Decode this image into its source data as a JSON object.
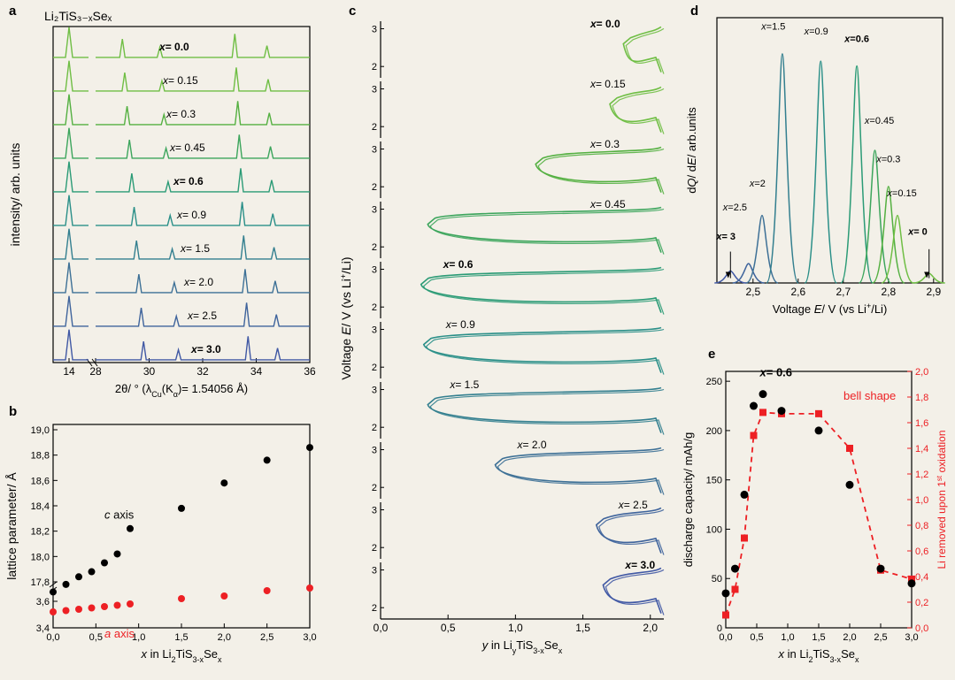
{
  "formula_title": "Li₂TiS₃₋ₓSeₓ",
  "panelA": {
    "label": "a",
    "ylabel": "intensity/ arb. units",
    "xlabel": "2θ/ ° (λ_Cu(K_α)= 1.54056 Å)",
    "xticks": [
      "14",
      "28",
      "30",
      "32",
      "34",
      "36"
    ],
    "curves": [
      {
        "x": "0.0",
        "color": "#6fbe44",
        "bold": true
      },
      {
        "x": "0.15",
        "color": "#6fbe44"
      },
      {
        "x": "0.3",
        "color": "#54b041"
      },
      {
        "x": "0.45",
        "color": "#3ca55c"
      },
      {
        "x": "0.6",
        "color": "#2b9b76",
        "bold": true
      },
      {
        "x": "0.9",
        "color": "#2a8f88"
      },
      {
        "x": "1.5",
        "color": "#337f8f"
      },
      {
        "x": "2.0",
        "color": "#3d7096"
      },
      {
        "x": "2.5",
        "color": "#3f649c"
      },
      {
        "x": "3.0",
        "color": "#4058a4",
        "bold": true
      }
    ]
  },
  "panelB": {
    "label": "b",
    "ylabel": "lattice parameter/ Å",
    "xlabel": "x in Li₂TiS₃₋ₓSeₓ",
    "xticks": [
      "0,0",
      "0,5",
      "1,0",
      "1,5",
      "2,0",
      "2,5",
      "3,0"
    ],
    "yticks": [
      "3,4",
      "3,6",
      "17,8",
      "18,0",
      "18,2",
      "18,4",
      "18,6",
      "18,8",
      "19,0"
    ],
    "c_axis_label": "c axis",
    "a_axis_label": "a axis",
    "c_axis_color": "#000000",
    "a_axis_color": "#ed2024",
    "c_points": [
      [
        0.0,
        17.72
      ],
      [
        0.15,
        17.78
      ],
      [
        0.3,
        17.84
      ],
      [
        0.45,
        17.88
      ],
      [
        0.6,
        17.95
      ],
      [
        0.75,
        18.02
      ],
      [
        0.9,
        18.22
      ],
      [
        1.5,
        18.38
      ],
      [
        2.0,
        18.58
      ],
      [
        2.5,
        18.76
      ],
      [
        3.0,
        18.86
      ]
    ],
    "a_points": [
      [
        0.0,
        3.52
      ],
      [
        0.15,
        3.53
      ],
      [
        0.3,
        3.54
      ],
      [
        0.45,
        3.55
      ],
      [
        0.6,
        3.56
      ],
      [
        0.75,
        3.57
      ],
      [
        0.9,
        3.58
      ],
      [
        1.5,
        3.62
      ],
      [
        2.0,
        3.64
      ],
      [
        2.5,
        3.68
      ],
      [
        3.0,
        3.7
      ]
    ]
  },
  "panelC": {
    "label": "c",
    "ylabel": "Voltage E/ V (vs Li⁺/Li)",
    "xlabel": "y in LiᵧTiS₃₋ₓSeₓ",
    "xticks": [
      "0,0",
      "0,5",
      "1,0",
      "1,5",
      "2,0"
    ],
    "yticks": [
      "2",
      "3"
    ],
    "curves": [
      {
        "x": "0.0",
        "color": "#6fbe44",
        "bold": true,
        "xstart": 1.8,
        "xend": 2.08
      },
      {
        "x": "0.15",
        "color": "#6fbe44",
        "xstart": 1.7,
        "xend": 2.08
      },
      {
        "x": "0.3",
        "color": "#54b041",
        "xstart": 1.15,
        "xend": 2.08
      },
      {
        "x": "0.45",
        "color": "#3ca55c",
        "xstart": 0.35,
        "xend": 2.08
      },
      {
        "x": "0.6",
        "color": "#2b9b76",
        "bold": true,
        "xstart": 0.3,
        "xend": 2.08
      },
      {
        "x": "0.9",
        "color": "#2a8f88",
        "xstart": 0.32,
        "xend": 2.08
      },
      {
        "x": "1.5",
        "color": "#337f8f",
        "xstart": 0.35,
        "xend": 2.08
      },
      {
        "x": "2.0",
        "color": "#3d7096",
        "xstart": 0.85,
        "xend": 2.08
      },
      {
        "x": "2.5",
        "color": "#3f649c",
        "xstart": 1.6,
        "xend": 2.08
      },
      {
        "x": "3.0",
        "color": "#4058a4",
        "bold": true,
        "xstart": 1.65,
        "xend": 2.08
      }
    ]
  },
  "panelD": {
    "label": "d",
    "ylabel": "dQ/ dE/ arb.units",
    "xlabel": "Voltage E/ V (vs Li⁺/Li)",
    "xticks": [
      "2,5",
      "2,6",
      "2,7",
      "2,8",
      "2,9"
    ],
    "peaks": [
      {
        "x": "3",
        "v": 2.45,
        "h": 0.05,
        "color": "#4058a4",
        "bold": true,
        "lx": 2.44,
        "ly": 0.18
      },
      {
        "x": "2.5",
        "v": 2.49,
        "h": 0.08,
        "color": "#3f649c",
        "lx": 2.46,
        "ly": 0.3
      },
      {
        "x": "2",
        "v": 2.52,
        "h": 0.28,
        "color": "#3d7096",
        "lx": 2.51,
        "ly": 0.4
      },
      {
        "x": "1.5",
        "v": 2.565,
        "h": 0.95,
        "color": "#337f8f",
        "lx": 2.545,
        "ly": 1.05
      },
      {
        "x": "0.9",
        "v": 2.65,
        "h": 0.92,
        "color": "#2a8f88",
        "lx": 2.64,
        "ly": 1.03
      },
      {
        "x": "0.6",
        "v": 2.73,
        "h": 0.9,
        "color": "#2b9b76",
        "bold": true,
        "lx": 2.73,
        "ly": 1.0
      },
      {
        "x": "0.45",
        "v": 2.77,
        "h": 0.55,
        "color": "#3ca55c",
        "lx": 2.78,
        "ly": 0.66
      },
      {
        "x": "0.3",
        "v": 2.8,
        "h": 0.4,
        "color": "#54b041",
        "lx": 2.8,
        "ly": 0.5
      },
      {
        "x": "0.15",
        "v": 2.82,
        "h": 0.28,
        "color": "#6fbe44",
        "lx": 2.83,
        "ly": 0.36
      },
      {
        "x": "0",
        "v": 2.89,
        "h": 0.04,
        "color": "#6fbe44",
        "bold": true,
        "lx": 2.865,
        "ly": 0.2
      }
    ]
  },
  "panelE": {
    "label": "e",
    "ylabel_left": "discharge capacity/ mAh/g",
    "ylabel_right": "Li removed upon 1ˢᵗ oxidation",
    "xlabel": "x in Li₂TiS₃₋ₓSeₓ",
    "annotation_x06": "x= 0.6",
    "annotation_bell": "bell shape",
    "xticks": [
      "0,0",
      "0,5",
      "1,0",
      "1,5",
      "2,0",
      "2,5",
      "3,0"
    ],
    "yticks_left": [
      "0",
      "50",
      "100",
      "150",
      "200",
      "250"
    ],
    "yticks_right": [
      "0,0",
      "0,2",
      "0,4",
      "0,6",
      "0,8",
      "1,0",
      "1,2",
      "1,4",
      "1,6",
      "1,8",
      "2,0"
    ],
    "black_color": "#000000",
    "red_color": "#ed2024",
    "black_points": [
      [
        0.0,
        35
      ],
      [
        0.15,
        60
      ],
      [
        0.3,
        135
      ],
      [
        0.45,
        225
      ],
      [
        0.6,
        237
      ],
      [
        0.9,
        220
      ],
      [
        1.5,
        200
      ],
      [
        2.0,
        145
      ],
      [
        2.5,
        60
      ],
      [
        3.0,
        45
      ]
    ],
    "red_points": [
      [
        0.0,
        0.1
      ],
      [
        0.15,
        0.3
      ],
      [
        0.3,
        0.7
      ],
      [
        0.45,
        1.5
      ],
      [
        0.6,
        1.68
      ],
      [
        0.9,
        1.67
      ],
      [
        1.5,
        1.67
      ],
      [
        2.0,
        1.4
      ],
      [
        2.5,
        0.45
      ],
      [
        3.0,
        0.38
      ]
    ]
  }
}
